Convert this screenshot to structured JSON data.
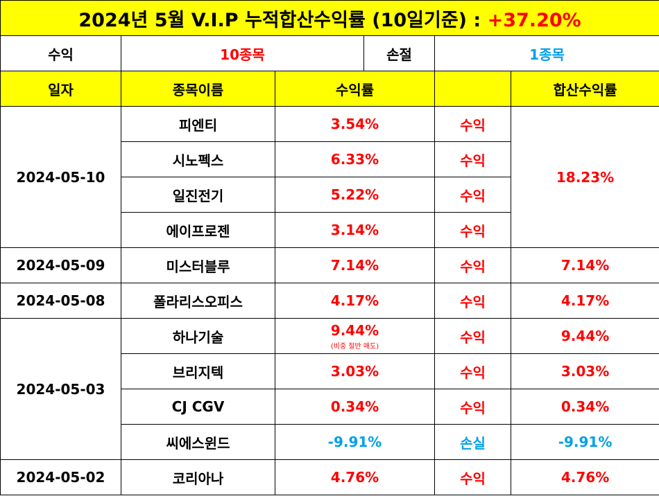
{
  "title": {
    "text": "2024년 5월 V.I.P 누적합산수익률 (10일기준) : ",
    "pct": "+37.20%"
  },
  "summary": {
    "profit_label": "수익",
    "profit_count": "10종목",
    "loss_label": "손절",
    "loss_count": "1종목"
  },
  "headers": {
    "date": "일자",
    "name": "종목이름",
    "rate": "수익률",
    "result": "",
    "sum": "합산수익률"
  },
  "rows": [
    {
      "date": "2024-05-10",
      "name": "피엔티",
      "rate": "3.54%",
      "result": "수익",
      "sum": "18.23%"
    },
    {
      "name": "시노펙스",
      "rate": "6.33%",
      "result": "수익"
    },
    {
      "name": "일진전기",
      "rate": "5.22%",
      "result": "수익"
    },
    {
      "name": "에이프로젠",
      "rate": "3.14%",
      "result": "수익"
    },
    {
      "date": "2024-05-09",
      "name": "미스터블루",
      "rate": "7.14%",
      "result": "수익",
      "sum": "7.14%"
    },
    {
      "date": "2024-05-08",
      "name": "폴라리스오피스",
      "rate": "4.17%",
      "result": "수익",
      "sum": "4.17%"
    },
    {
      "date": "2024-05-03",
      "name": "하나기술",
      "rate": "9.44%",
      "note": "(비중 절반 매도)",
      "result": "수익",
      "sum": "9.44%"
    },
    {
      "name": "브리지텍",
      "rate": "3.03%",
      "result": "수익",
      "sum": "3.03%"
    },
    {
      "name": "CJ CGV",
      "rate": "0.34%",
      "result": "수익",
      "sum": "0.34%"
    },
    {
      "name": "씨에스윈드",
      "rate": "-9.91%",
      "result": "손실",
      "sum": "-9.91%"
    },
    {
      "date": "2024-05-02",
      "name": "코리아나",
      "rate": "4.76%",
      "result": "수익",
      "sum": "4.76%"
    }
  ],
  "colors": {
    "header_bg": "#ffff00",
    "positive": "#ff0000",
    "negative": "#00a0e8",
    "border": "#000000"
  }
}
